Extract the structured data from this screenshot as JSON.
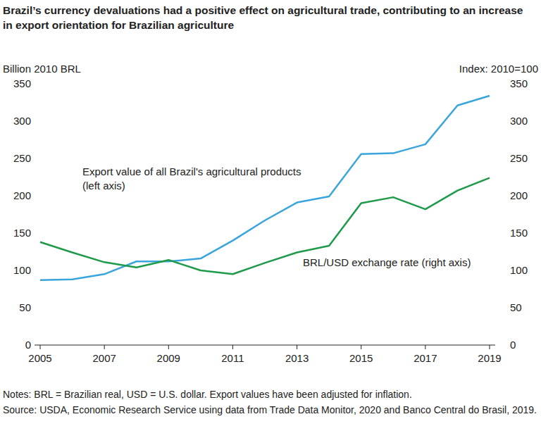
{
  "chart_data": {
    "type": "line",
    "title": "Brazil’s currency devaluations had a positive effect on agricultural trade, contributing to an increase in export orientation for Brazilian agriculture",
    "y_label": "Billion 2010 BRL",
    "y2_label": "Index: 2010=100",
    "x": [
      2005,
      2006,
      2007,
      2008,
      2009,
      2010,
      2011,
      2012,
      2013,
      2014,
      2015,
      2016,
      2017,
      2018,
      2019
    ],
    "xlim": [
      2005,
      2019
    ],
    "xticks": [
      2005,
      2007,
      2009,
      2011,
      2013,
      2015,
      2017,
      2019
    ],
    "ylim": [
      0,
      350
    ],
    "yticks": [
      0,
      50,
      100,
      150,
      200,
      250,
      300,
      350
    ],
    "y2lim": [
      0,
      350
    ],
    "y2ticks": [
      0,
      50,
      100,
      150,
      200,
      250,
      300,
      350
    ],
    "grid": false,
    "series": [
      {
        "name": "Export value of all Brazil's agricultural products (left axis)",
        "color": "#3aa5dc",
        "values": [
          87,
          88,
          95,
          112,
          112,
          116,
          140,
          167,
          191,
          199,
          256,
          257,
          269,
          321,
          334
        ]
      },
      {
        "name": "BRL/USD exchange rate (right axis)",
        "color": "#1f9a4a",
        "axis": "y2",
        "values": [
          138,
          124,
          111,
          104,
          114,
          100,
          95,
          110,
          124,
          133,
          190,
          198,
          182,
          207,
          224
        ]
      }
    ],
    "notes": "Notes: BRL = Brazilian real, USD = U.S. dollar. Export values have been adjusted for inflation.",
    "source": "Source: USDA, Economic Research Service using data from Trade Data Monitor, 2020 and Banco Central do Brasil, 2019."
  }
}
